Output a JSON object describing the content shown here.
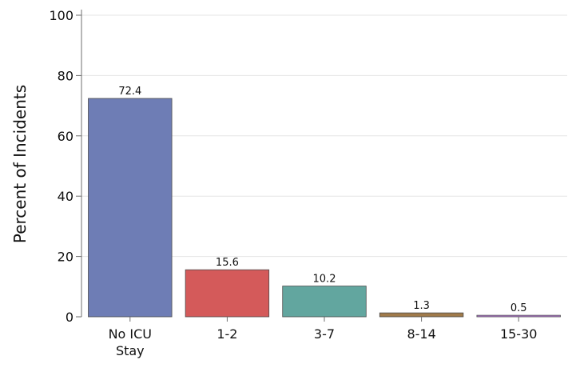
{
  "chart_data": {
    "type": "bar",
    "categories": [
      [
        "No ICU",
        "Stay"
      ],
      [
        "1-2"
      ],
      [
        "3-7"
      ],
      [
        "8-14"
      ],
      [
        "15-30"
      ]
    ],
    "values": [
      72.4,
      15.6,
      10.2,
      1.3,
      0.5
    ],
    "data_labels": [
      "72.4",
      "15.6",
      "10.2",
      "1.3",
      "0.5"
    ],
    "colors": [
      "#6e7db5",
      "#d45a5a",
      "#62a69f",
      "#a07a4a",
      "#b77ad6"
    ],
    "title": "",
    "xlabel": "",
    "ylabel": "Percent of Incidents",
    "ylim": [
      0,
      100
    ],
    "yticks": [
      0,
      20,
      40,
      60,
      80,
      100
    ],
    "grid": true,
    "legend": "none"
  }
}
